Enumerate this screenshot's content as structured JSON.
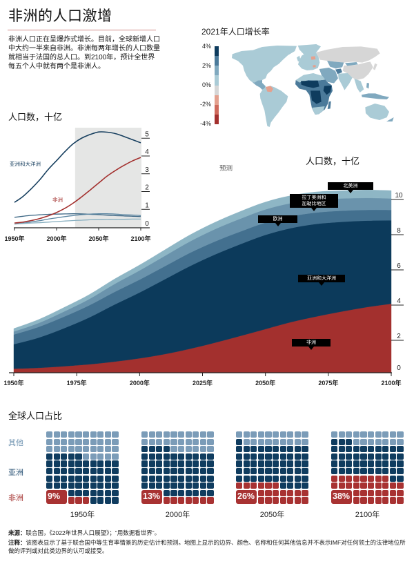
{
  "header": {
    "title": "非洲的人口激增",
    "intro": "非洲人口正在呈爆炸式增长。目前，全球新增人口中大约一半来自非洲。非洲每两年增长的人口数量就相当于法国的总人口。到2100年，预计全世界每五个人中就有两个是非洲人。"
  },
  "map": {
    "title": "2021年人口增长率",
    "legend_ticks": [
      "4%",
      "2%",
      "0%",
      "-2%",
      "-4%"
    ],
    "legend_bins": [
      {
        "range": "3% to 4%",
        "color": "#0e3c5e"
      },
      {
        "range": "2% to 3%",
        "color": "#4b7a9a"
      },
      {
        "range": "1% to 2%",
        "color": "#80a9bf"
      },
      {
        "range": "0% to 1%",
        "color": "#aacbd6"
      },
      {
        "range": "-1% to 0%",
        "color": "#d6d6d6"
      },
      {
        "range": "-2% to -1%",
        "color": "#e4a08e"
      },
      {
        "range": "-3% to -2%",
        "color": "#cf6a5c"
      },
      {
        "range": "-4% to -3%",
        "color": "#a3302e"
      }
    ],
    "regions": [
      {
        "name": "north-america",
        "color": "#aacbd6"
      },
      {
        "name": "greenland",
        "color": "#aacbd6"
      },
      {
        "name": "central-america",
        "color": "#80a9bf"
      },
      {
        "name": "south-america",
        "color": "#aacbd6"
      },
      {
        "name": "venezuela",
        "color": "#e4a08e"
      },
      {
        "name": "europe",
        "color": "#aacbd6"
      },
      {
        "name": "britain",
        "color": "#aacbd6"
      },
      {
        "name": "poland",
        "color": "#e4a08e"
      },
      {
        "name": "bulgaria",
        "color": "#e4a08e"
      },
      {
        "name": "russia",
        "color": "#d6d6d6"
      },
      {
        "name": "central-asia",
        "color": "#80a9bf"
      },
      {
        "name": "east-asia",
        "color": "#d6d6d6"
      },
      {
        "name": "mongolia",
        "color": "#80a9bf"
      },
      {
        "name": "japan",
        "color": "#d6d6d6"
      },
      {
        "name": "middle-east",
        "color": "#80a9bf"
      },
      {
        "name": "afghanistan",
        "color": "#4b7a9a"
      },
      {
        "name": "south-asia",
        "color": "#aacbd6"
      },
      {
        "name": "southeast-asia",
        "color": "#aacbd6"
      },
      {
        "name": "philippines",
        "color": "#80a9bf"
      },
      {
        "name": "maritime-southeast-asia",
        "color": "#80a9bf"
      },
      {
        "name": "africa",
        "color": "#4b7a9a"
      },
      {
        "name": "north-africa",
        "color": "#aacbd6"
      },
      {
        "name": "sahel",
        "color": "#0e3c5e"
      },
      {
        "name": "central-africa",
        "color": "#0e3c5e"
      },
      {
        "name": "horn-of-africa",
        "color": "#0e3c5e"
      },
      {
        "name": "southern-africa",
        "color": "#aacbd6"
      },
      {
        "name": "madagascar",
        "color": "#4b7a9a"
      },
      {
        "name": "australia",
        "color": "#aacbd6"
      },
      {
        "name": "new-zealand",
        "color": "#80a9bf"
      }
    ]
  },
  "chart_data": [
    {
      "id": "regional-population-lines",
      "type": "line",
      "title": "人口数，十亿",
      "xlabel": "",
      "ylabel": "人口数，十亿",
      "x": [
        1950,
        1960,
        1970,
        1980,
        1990,
        2000,
        2010,
        2020,
        2030,
        2040,
        2050,
        2060,
        2070,
        2080,
        2090,
        2100
      ],
      "xlim": [
        1950,
        2100
      ],
      "ylim": [
        0,
        5.4
      ],
      "xticks": [
        1950,
        2000,
        2050,
        2100
      ],
      "xtick_labels": [
        "1950年",
        "2000年",
        "2050年",
        "2100年"
      ],
      "yticks": [
        0,
        1,
        2,
        3,
        4,
        5
      ],
      "forecast_from": 2022,
      "grid": false,
      "series": [
        {
          "name": "欧洲",
          "color": "#3a6583",
          "labeled": false,
          "values": [
            0.55,
            0.61,
            0.66,
            0.69,
            0.72,
            0.73,
            0.74,
            0.75,
            0.74,
            0.72,
            0.7,
            0.67,
            0.65,
            0.63,
            0.61,
            0.59
          ]
        },
        {
          "name": "拉丁美洲和加勒比地区",
          "color": "#5b86a2",
          "labeled": false,
          "values": [
            0.17,
            0.22,
            0.29,
            0.36,
            0.45,
            0.52,
            0.59,
            0.65,
            0.7,
            0.73,
            0.75,
            0.75,
            0.73,
            0.7,
            0.68,
            0.65
          ]
        },
        {
          "name": "北美洲",
          "color": "#86aebf",
          "labeled": false,
          "values": [
            0.17,
            0.2,
            0.23,
            0.25,
            0.28,
            0.31,
            0.34,
            0.37,
            0.39,
            0.41,
            0.42,
            0.43,
            0.44,
            0.44,
            0.45,
            0.45
          ]
        },
        {
          "name": "非洲",
          "color": "#a3302e",
          "labeled": true,
          "values": [
            0.23,
            0.28,
            0.37,
            0.48,
            0.63,
            0.82,
            1.06,
            1.36,
            1.71,
            2.09,
            2.48,
            2.87,
            3.19,
            3.47,
            3.72,
            3.92
          ]
        },
        {
          "name": "亚洲和大洋洲",
          "color": "#173f5f",
          "labeled": true,
          "values": [
            1.39,
            1.72,
            2.16,
            2.66,
            3.24,
            3.74,
            4.25,
            4.7,
            5.01,
            5.21,
            5.35,
            5.34,
            5.26,
            5.1,
            4.92,
            4.74
          ]
        }
      ]
    },
    {
      "id": "world-population-stacked",
      "type": "area",
      "stacked": true,
      "title": "人口数，十亿",
      "forecast_label": "预测",
      "xlabel": "",
      "ylabel": "人口数，十亿",
      "x": [
        1950,
        1960,
        1970,
        1980,
        1990,
        2000,
        2010,
        2020,
        2030,
        2040,
        2050,
        2060,
        2070,
        2080,
        2090,
        2100
      ],
      "xlim": [
        1950,
        2100
      ],
      "ylim": [
        0,
        10
      ],
      "xticks": [
        1950,
        1975,
        2000,
        2025,
        2050,
        2075,
        2100
      ],
      "xtick_labels": [
        "1950年",
        "1975年",
        "2000年",
        "2025年",
        "2050年",
        "2075年",
        "2100年"
      ],
      "yticks": [
        0,
        2,
        4,
        6,
        8,
        10
      ],
      "grid": false,
      "series": [
        {
          "name": "非洲",
          "color": "#a3302e",
          "values": [
            0.23,
            0.28,
            0.37,
            0.48,
            0.63,
            0.82,
            1.06,
            1.36,
            1.71,
            2.09,
            2.48,
            2.87,
            3.19,
            3.47,
            3.72,
            3.92
          ]
        },
        {
          "name": "亚洲和大洋洲",
          "color": "#0c3a5b",
          "values": [
            1.39,
            1.72,
            2.16,
            2.66,
            3.24,
            3.74,
            4.25,
            4.7,
            5.01,
            5.21,
            5.35,
            5.34,
            5.26,
            5.1,
            4.92,
            4.74
          ]
        },
        {
          "name": "欧洲",
          "color": "#43708f",
          "values": [
            0.55,
            0.61,
            0.66,
            0.69,
            0.72,
            0.73,
            0.74,
            0.75,
            0.74,
            0.72,
            0.7,
            0.67,
            0.65,
            0.63,
            0.61,
            0.59
          ]
        },
        {
          "name": "拉丁美洲和加勒比地区",
          "color": "#6a93ac",
          "values": [
            0.17,
            0.22,
            0.29,
            0.36,
            0.45,
            0.52,
            0.59,
            0.65,
            0.7,
            0.73,
            0.75,
            0.75,
            0.73,
            0.7,
            0.68,
            0.65
          ]
        },
        {
          "name": "北美洲",
          "color": "#8eb6c5",
          "values": [
            0.17,
            0.2,
            0.23,
            0.25,
            0.28,
            0.31,
            0.34,
            0.37,
            0.39,
            0.41,
            0.42,
            0.43,
            0.44,
            0.44,
            0.45,
            0.45
          ]
        }
      ],
      "annotations": [
        {
          "lines": [
            "北美洲"
          ]
        },
        {
          "lines": [
            "拉丁美洲和",
            "加勒比地区"
          ]
        },
        {
          "lines": [
            "欧洲"
          ]
        },
        {
          "lines": [
            "亚洲和大洋洲"
          ]
        },
        {
          "lines": [
            "非洲"
          ]
        }
      ]
    },
    {
      "id": "global-population-share",
      "type": "pie",
      "variant": "waffle",
      "title": "全球人口占比",
      "units": "percent of world population (100 squares)",
      "categories": [
        "其他",
        "亚洲",
        "非洲"
      ],
      "colors": {
        "other": "#7b9cb8",
        "asia": "#0f3c5f",
        "africa": "#a83232"
      },
      "label_colors": {
        "other": "#6d92b0",
        "asia": "#1f4a6e",
        "africa": "#a3302e"
      },
      "panels": [
        {
          "year": "1950年",
          "africa": 9,
          "asia": 56,
          "other": 35,
          "label": "9%"
        },
        {
          "year": "2000年",
          "africa": 13,
          "asia": 61,
          "other": 26,
          "label": "13%"
        },
        {
          "year": "2050年",
          "africa": 26,
          "asia": 55,
          "other": 19,
          "label": "26%"
        },
        {
          "year": "2100年",
          "africa": 38,
          "asia": 45,
          "other": 17,
          "label": "38%"
        }
      ]
    }
  ],
  "footer": {
    "source_label": "来源：",
    "source": "联合国，《2022年世界人口展望》；“用数据看世界”。",
    "note_label": "注释：",
    "note": "该图表显示了基于联合国中等生育率情景的历史估计和预测。地图上显示的边界、颜色、名称和任何其他信息并不表示IMF对任何领土的法律地位所做的评判或对此类边界的认可或接受。"
  }
}
